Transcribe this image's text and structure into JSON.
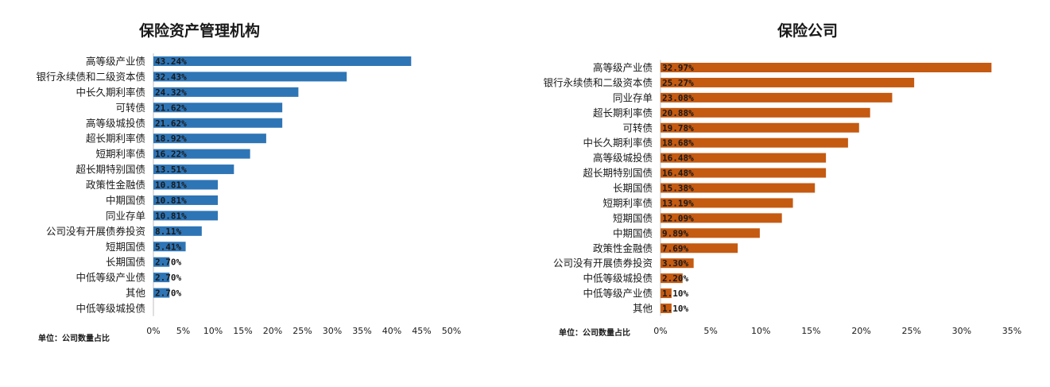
{
  "charts": [
    {
      "title": "保险资产管理机构",
      "unit_note": "单位：公司数量占比",
      "color": "#2e75b6",
      "tick_labels": [
        "0%",
        "5%",
        "10%",
        "15%",
        "20%",
        "25%",
        "30%",
        "35%",
        "40%",
        "45%",
        "50%"
      ]
    },
    {
      "title": "保险公司",
      "unit_note": "单位：公司数量占比",
      "color": "#c55a11",
      "tick_labels": [
        "0%",
        "5%",
        "10%",
        "15%",
        "20%",
        "25%",
        "30%",
        "35%"
      ]
    }
  ],
  "chart_data": [
    {
      "type": "bar",
      "orientation": "horizontal",
      "title": "保险资产管理机构",
      "xlim": [
        0,
        50
      ],
      "categories": [
        "高等级产业债",
        "银行永续债和二级资本债",
        "中长久期利率债",
        "可转债",
        "高等级城投债",
        "超长期利率债",
        "短期利率债",
        "超长期特别国债",
        "政策性金融债",
        "中期国债",
        "同业存单",
        "公司没有开展债券投资",
        "短期国债",
        "长期国债",
        "中低等级产业债",
        "其他",
        "中低等级城投债"
      ],
      "values": [
        43.24,
        32.43,
        24.32,
        21.62,
        21.62,
        18.92,
        16.22,
        13.51,
        10.81,
        10.81,
        10.81,
        8.11,
        5.41,
        2.7,
        2.7,
        2.7,
        0
      ],
      "value_labels": [
        "43.24%",
        "32.43%",
        "24.32%",
        "21.62%",
        "21.62%",
        "18.92%",
        "16.22%",
        "13.51%",
        "10.81%",
        "10.81%",
        "10.81%",
        "8.11%",
        "5.41%",
        "2.70%",
        "2.70%",
        "2.70%",
        ""
      ]
    },
    {
      "type": "bar",
      "orientation": "horizontal",
      "title": "保险公司",
      "xlim": [
        0,
        35
      ],
      "categories": [
        "高等级产业债",
        "银行永续债和二级资本债",
        "同业存单",
        "超长期利率债",
        "可转债",
        "中长久期利率债",
        "高等级城投债",
        "超长期特别国债",
        "长期国债",
        "短期利率债",
        "短期国债",
        "中期国债",
        "政策性金融债",
        "公司没有开展债券投资",
        "中低等级城投债",
        "中低等级产业债",
        "其他"
      ],
      "values": [
        32.97,
        25.27,
        23.08,
        20.88,
        19.78,
        18.68,
        16.48,
        16.48,
        15.38,
        13.19,
        12.09,
        9.89,
        7.69,
        3.3,
        2.2,
        1.1,
        1.1
      ],
      "value_labels": [
        "32.97%",
        "25.27%",
        "23.08%",
        "20.88%",
        "19.78%",
        "18.68%",
        "16.48%",
        "16.48%",
        "15.38%",
        "13.19%",
        "12.09%",
        "9.89%",
        "7.69%",
        "3.30%",
        "2.20%",
        "1.10%",
        "1.10%"
      ]
    }
  ]
}
